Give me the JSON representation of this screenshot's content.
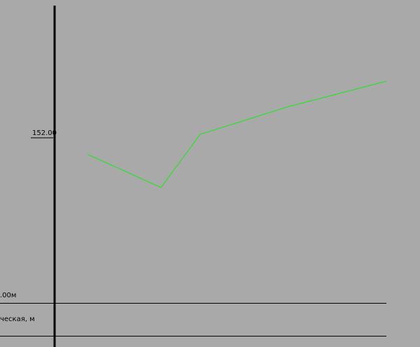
{
  "profile": {
    "elevation_label": "152.00",
    "datum_label": ".00м",
    "row_label": "ческая, м",
    "line_color": "#33dd33",
    "background_color": "#a9a9a9",
    "axis_color": "#000000"
  }
}
